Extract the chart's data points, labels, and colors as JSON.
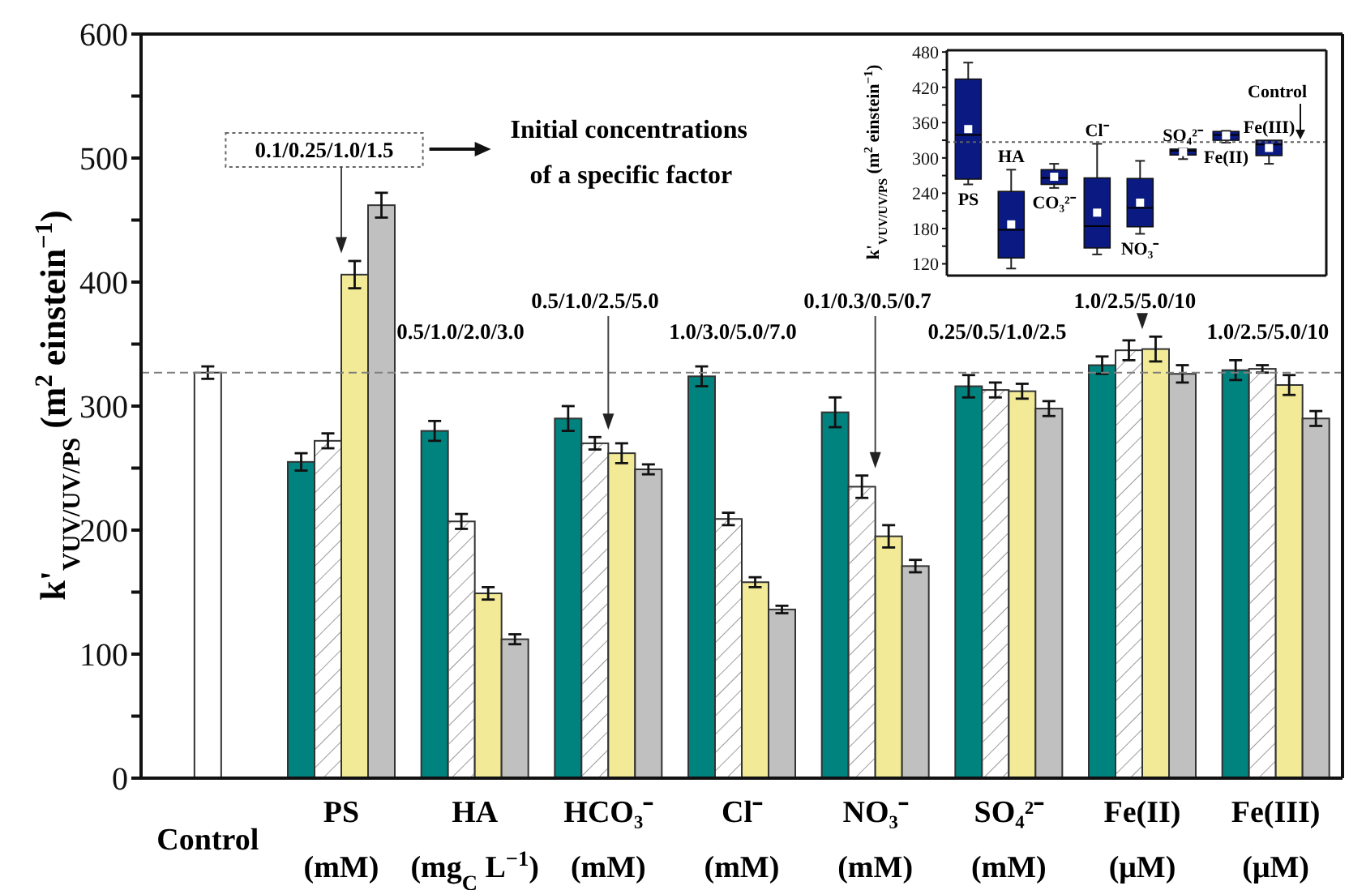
{
  "chart_data": [
    {
      "type": "bar",
      "ylabel": "k'$_{VUV/UV/PS}$ (m$^{2}$ einstein$^{−1}$)",
      "categories": [
        "Control",
        "PS (mM)",
        "HA (mg$_{C}$ L$^{−1}$)",
        "HCO₃⁻ (mM)",
        "Cl⁻ (mM)",
        "NO₃⁻ (mM)",
        "SO₄²⁻ (mM)",
        "Fe(II) (μM)",
        "Fe(III) (μM)"
      ],
      "series": [
        {
          "color": "#00837f",
          "values": [
            null,
            255,
            280,
            290,
            324,
            295,
            316,
            333,
            329
          ],
          "errors": [
            null,
            7,
            8,
            10,
            8,
            12,
            9,
            7,
            8
          ]
        },
        {
          "color": "#ffffff",
          "values": [
            null,
            272,
            207,
            270,
            209,
            235,
            313,
            345,
            330
          ],
          "errors": [
            null,
            6,
            6,
            5,
            5,
            9,
            6,
            8,
            3
          ]
        },
        {
          "color": "#f2ea96",
          "values": [
            null,
            406,
            149,
            262,
            158,
            195,
            312,
            346,
            317
          ],
          "errors": [
            null,
            11,
            5,
            8,
            4,
            9,
            6,
            10,
            8
          ]
        },
        {
          "color": "#c0c0c0",
          "values": [
            null,
            462,
            112,
            249,
            136,
            171,
            298,
            326,
            290
          ],
          "errors": [
            null,
            10,
            4,
            4,
            3,
            5,
            6,
            7,
            6
          ]
        },
        {
          "color": "#ffffff",
          "values": [
            327,
            null,
            null,
            null,
            null,
            null,
            null,
            null,
            null
          ],
          "errors": [
            5,
            null,
            null,
            null,
            null,
            null,
            null,
            null,
            null
          ]
        }
      ],
      "ylim": [
        0,
        600
      ],
      "yticks": [
        0,
        {
          "value": 50,
          "label": null
        },
        100,
        {
          "value": 150,
          "label": null
        },
        200,
        {
          "value": 250,
          "label": null
        },
        300,
        {
          "value": 350,
          "label": null
        },
        400,
        {
          "value": 450,
          "label": null
        },
        500,
        {
          "value": 550,
          "label": null
        },
        600
      ],
      "ref_lines": [
        {
          "axis": "y",
          "value": 327,
          "color": "#808080",
          "line_style": "dashed"
        }
      ],
      "annotations": [
        "0.1/0.25/1.0/1.5",
        "Initial concentrations of a specific factor",
        "0.5/1.0/2.0/3.0",
        "0.5/1.0/2.5/5.0",
        "1.0/3.0/5.0/7.0",
        "0.1/0.3/0.5/0.7",
        "0.25/0.5/1.0/2.5",
        "1.0/2.5/5.0/10",
        "1.0/2.5/5.0/10"
      ],
      "grid": false,
      "legend": false
    },
    {
      "type": "box",
      "ylabel": "k'$_{VUV/UV/PS}$ (m$^{2}$ einstein$^{−1}$)",
      "categories": [
        "PS",
        "HA",
        "CO₃²⁻",
        "Cl⁻",
        "NO₃⁻",
        "SO₄²⁻",
        "Fe(II)",
        "Fe(III)"
      ],
      "color": "#0a1a82",
      "boxes": [
        {
          "low": 255,
          "q1": 264,
          "median": 339,
          "q3": 434,
          "high": 462,
          "mean": 349
        },
        {
          "low": 112,
          "q1": 130,
          "median": 178,
          "q3": 243,
          "high": 280,
          "mean": 187
        },
        {
          "low": 249,
          "q1": 255,
          "median": 266,
          "q3": 280,
          "high": 290,
          "mean": 268
        },
        {
          "low": 136,
          "q1": 147,
          "median": 184,
          "q3": 266,
          "high": 324,
          "mean": 207
        },
        {
          "low": 171,
          "q1": 183,
          "median": 215,
          "q3": 265,
          "high": 295,
          "mean": 224
        },
        {
          "low": 298,
          "q1": 305,
          "median": 312,
          "q3": 315,
          "high": 316,
          "mean": 310
        },
        {
          "low": 326,
          "q1": 330,
          "median": 339,
          "q3": 345,
          "high": 346,
          "mean": 338
        },
        {
          "low": 290,
          "q1": 304,
          "median": 323,
          "q3": 330,
          "high": 330,
          "mean": 317
        }
      ],
      "ylim": [
        100,
        483
      ],
      "yticks": [
        120,
        {
          "value": 150,
          "label": null
        },
        180,
        {
          "value": 210,
          "label": null
        },
        240,
        {
          "value": 270,
          "label": null
        },
        300,
        {
          "value": 330,
          "label": null
        },
        360,
        {
          "value": 390,
          "label": null
        },
        420,
        {
          "value": 450,
          "label": null
        },
        480
      ],
      "ref_lines": [
        {
          "axis": "y",
          "value": 327,
          "color": "#606060",
          "line_style": "dotted"
        }
      ],
      "annotations": [
        "Control"
      ],
      "grid": false,
      "legend": false
    }
  ]
}
